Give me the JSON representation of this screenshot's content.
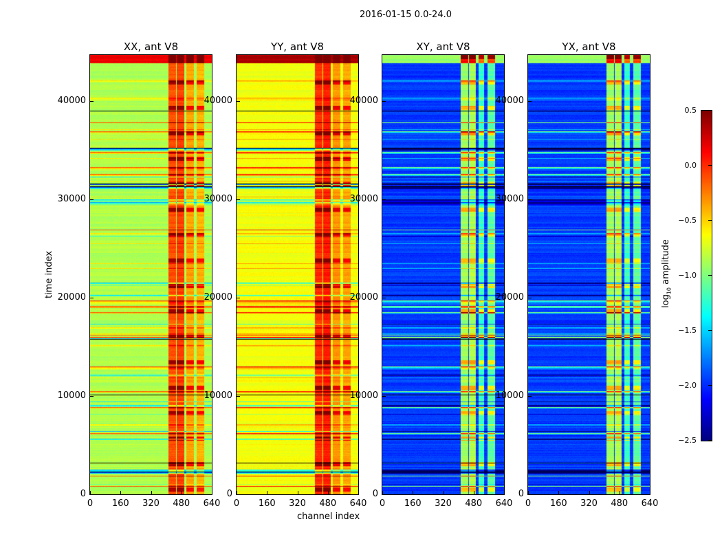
{
  "chart_data": {
    "type": "heatmap",
    "suptitle": "2016-01-15 0.0-24.0",
    "xlabel": "channel index",
    "ylabel": "time index",
    "xlim": [
      0,
      640
    ],
    "ylim": [
      0,
      44700
    ],
    "xticks": [
      "0",
      "160",
      "320",
      "480",
      "640"
    ],
    "xtick_values": [
      0,
      160,
      320,
      480,
      640
    ],
    "yticks": [
      "0",
      "10000",
      "20000",
      "30000",
      "40000"
    ],
    "ytick_values": [
      0,
      10000,
      20000,
      30000,
      40000
    ],
    "colormap": "jet",
    "clim": [
      -2.5,
      0.5
    ],
    "colorbar": {
      "label": "log10 amplitude",
      "label_main": "log",
      "label_sub": "10",
      "label_rest": " amplitude",
      "ticks": [
        "0.5",
        "0.0",
        "−0.5",
        "−1.0",
        "−1.5",
        "−2.0",
        "−2.5"
      ],
      "tick_values": [
        0.5,
        0.0,
        -0.5,
        -1.0,
        -1.5,
        -2.0,
        -2.5
      ]
    },
    "panels": [
      {
        "title": "XX, ant V8",
        "base": -0.85,
        "bands": [
          {
            "from": 410,
            "to": 450,
            "level": -0.1
          },
          {
            "from": 455,
            "to": 495,
            "level": -0.05
          },
          {
            "from": 505,
            "to": 545,
            "level": -0.35
          },
          {
            "from": 560,
            "to": 600,
            "level": -0.4
          }
        ],
        "show_yticks": true
      },
      {
        "title": "YY, ant V8",
        "base": -0.65,
        "bands": [
          {
            "from": 410,
            "to": 450,
            "level": 0.0
          },
          {
            "from": 455,
            "to": 495,
            "level": 0.05
          },
          {
            "from": 505,
            "to": 545,
            "level": -0.3
          },
          {
            "from": 560,
            "to": 600,
            "level": -0.35
          }
        ],
        "show_yticks": true
      },
      {
        "title": "XY, ant V8",
        "base": -1.95,
        "bands": [
          {
            "from": 410,
            "to": 450,
            "level": -0.9
          },
          {
            "from": 455,
            "to": 490,
            "level": -0.85
          },
          {
            "from": 505,
            "to": 535,
            "level": -1.2
          },
          {
            "from": 550,
            "to": 590,
            "level": -1.1
          }
        ],
        "show_yticks": true
      },
      {
        "title": "YX, ant V8",
        "base": -1.95,
        "bands": [
          {
            "from": 410,
            "to": 450,
            "level": -0.9
          },
          {
            "from": 455,
            "to": 490,
            "level": -0.85
          },
          {
            "from": 505,
            "to": 535,
            "level": -1.2
          },
          {
            "from": 550,
            "to": 590,
            "level": -1.1
          }
        ],
        "show_yticks": true
      }
    ]
  }
}
